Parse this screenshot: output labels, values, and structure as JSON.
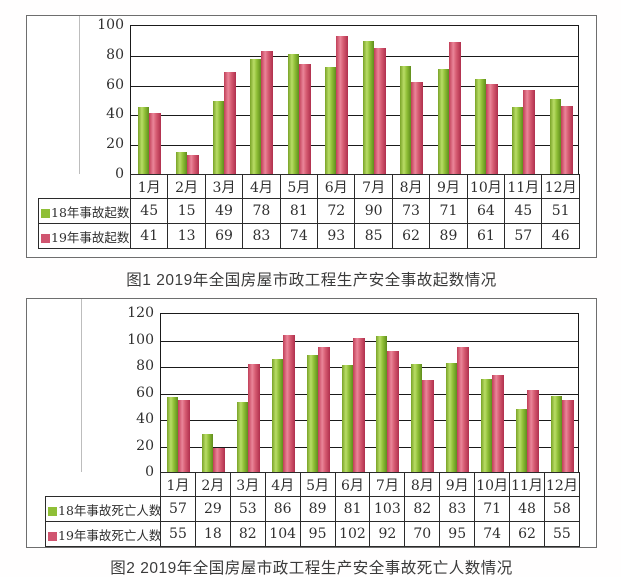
{
  "colors": {
    "series_2018_green": "#8fbf37",
    "series_2019_red": "#d05570",
    "gridline": "#1a1a1a",
    "table_border": "#2b2b2b",
    "box_border": "#6e6e6e"
  },
  "chart_data": [
    {
      "type": "bar",
      "title": "图1 2019年全国房屋市政工程生产安全事故起数情况",
      "categories": [
        "1月",
        "2月",
        "3月",
        "4月",
        "5月",
        "6月",
        "7月",
        "8月",
        "9月",
        "10月",
        "11月",
        "12月"
      ],
      "series": [
        {
          "name": "18年事故起数",
          "color": "#8fbf37",
          "values": [
            45,
            15,
            49,
            78,
            81,
            72,
            90,
            73,
            71,
            64,
            45,
            51
          ]
        },
        {
          "name": "19年事故起数",
          "color": "#d05570",
          "values": [
            41,
            13,
            69,
            83,
            74,
            93,
            85,
            62,
            89,
            61,
            57,
            46
          ]
        }
      ],
      "ylim": [
        0,
        100
      ],
      "y_ticks": [
        0,
        20,
        40,
        60,
        80,
        100
      ],
      "grid": true,
      "legend_position": "data-table-left"
    },
    {
      "type": "bar",
      "title": "图2 2019年全国房屋市政工程生产安全事故死亡人数情况",
      "categories": [
        "1月",
        "2月",
        "3月",
        "4月",
        "5月",
        "6月",
        "7月",
        "8月",
        "9月",
        "10月",
        "11月",
        "12月"
      ],
      "series": [
        {
          "name": "18年事故死亡人数",
          "color": "#8fbf37",
          "values": [
            57,
            29,
            53,
            86,
            89,
            81,
            103,
            82,
            83,
            71,
            48,
            58
          ]
        },
        {
          "name": "19年事故死亡人数",
          "color": "#d05570",
          "values": [
            55,
            18,
            82,
            104,
            95,
            102,
            92,
            70,
            95,
            74,
            62,
            55
          ]
        }
      ],
      "ylim": [
        0,
        120
      ],
      "y_ticks": [
        0,
        20,
        40,
        60,
        80,
        100,
        120
      ],
      "grid": true,
      "legend_position": "data-table-left"
    }
  ]
}
